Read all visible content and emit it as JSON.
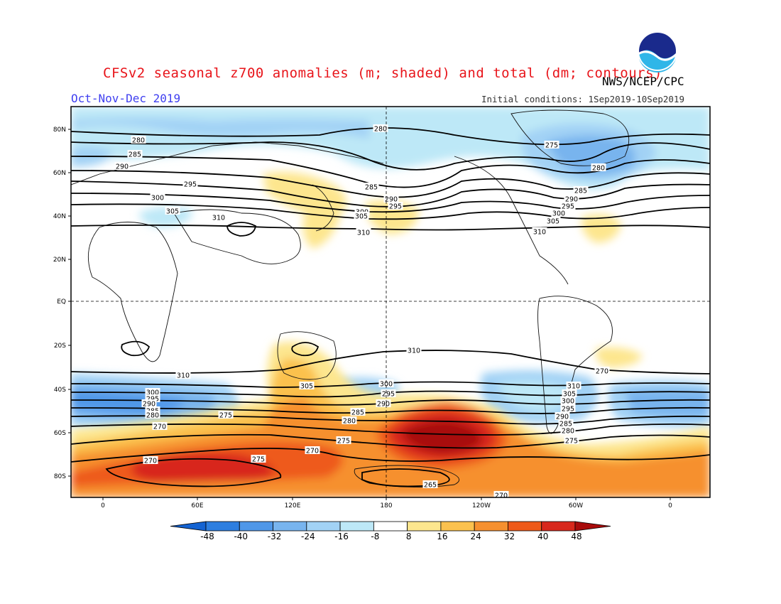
{
  "header": {
    "title": "CFSv2 seasonal z700 anomalies (m; shaded) and total (dm; contours)",
    "period": "Oct-Nov-Dec 2019",
    "agency": "NWS/NCEP/CPC",
    "initial_conditions": "Initial conditions: 1Sep2019-10Sep2019",
    "logo_text": "NOAA"
  },
  "map": {
    "lat_labels": [
      "80N",
      "60N",
      "40N",
      "20N",
      "EQ",
      "20S",
      "40S",
      "60S",
      "80S"
    ],
    "lon_labels": [
      "0",
      "60E",
      "120E",
      "180",
      "120W",
      "60W",
      "0"
    ],
    "contour_labels": {
      "north": [
        "280",
        "285",
        "290",
        "295",
        "300",
        "305",
        "310",
        "275",
        "280",
        "285",
        "290",
        "295",
        "300",
        "305",
        "310",
        "280",
        "285",
        "290",
        "295",
        "300",
        "305",
        "310"
      ],
      "south": [
        "310",
        "310",
        "305",
        "300",
        "295",
        "290",
        "285",
        "280",
        "275",
        "270",
        "270",
        "270",
        "275",
        "265",
        "300",
        "295",
        "290",
        "285",
        "280",
        "275",
        "270",
        "310",
        "305",
        "300",
        "295",
        "290",
        "285",
        "280",
        "275",
        "270"
      ]
    }
  },
  "colorbar": {
    "ticks": [
      "-48",
      "-40",
      "-32",
      "-24",
      "-16",
      "-8",
      "8",
      "16",
      "24",
      "32",
      "40",
      "48"
    ],
    "colors": [
      "#1463d2",
      "#2d7ee0",
      "#4f97e8",
      "#78b4ee",
      "#a2d2f5",
      "#bde8f7",
      "#ffffff",
      "#fde68e",
      "#fbc14e",
      "#f6902f",
      "#ee5a1a",
      "#d8281c",
      "#a80b0b"
    ]
  }
}
